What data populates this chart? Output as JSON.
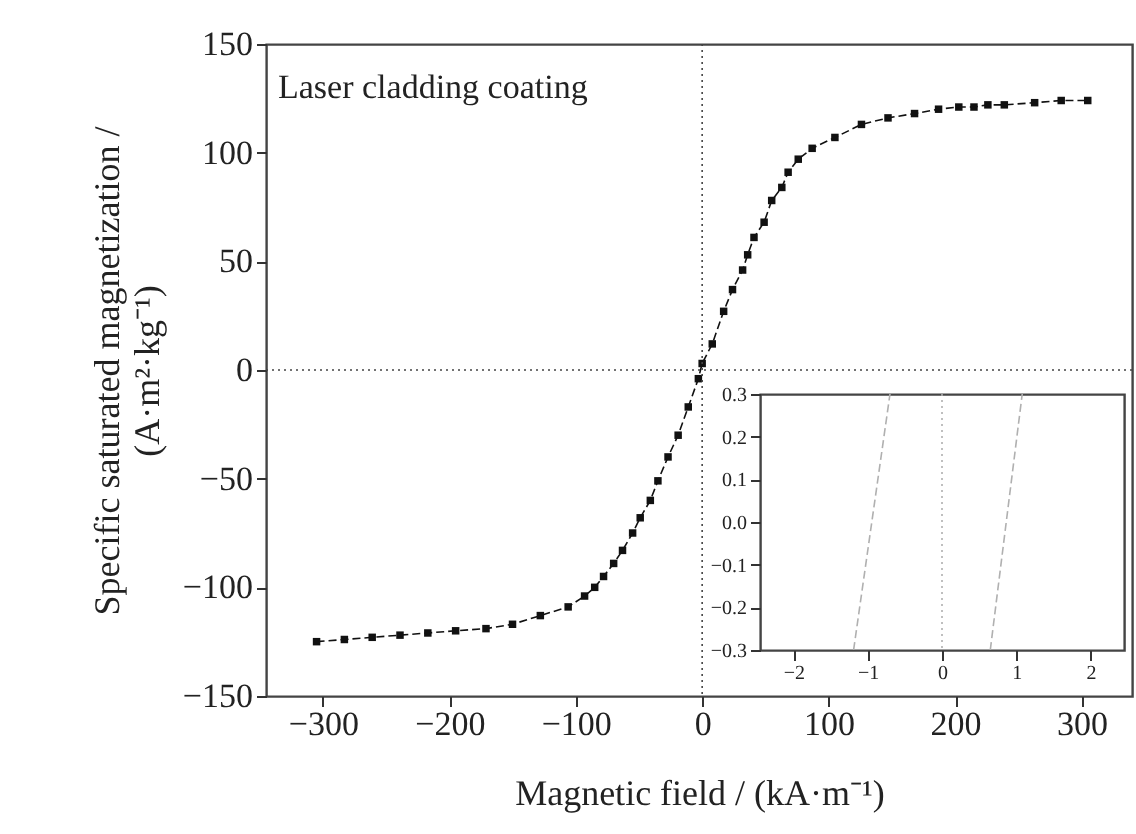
{
  "chart_data": [
    {
      "type": "line",
      "xlabel": "Magnetic field / (kA·m⁻¹)",
      "ylabel": "Specific saturated magnetization /\n(A·m²·kg⁻¹)",
      "annotations": [
        "Laser cladding coating"
      ],
      "xlim": [
        -345,
        340
      ],
      "ylim": [
        -150,
        150
      ],
      "xticks": [
        -300,
        -200,
        -100,
        0,
        100,
        200,
        300
      ],
      "yticks": [
        -150,
        -100,
        -50,
        0,
        50,
        100,
        150
      ],
      "marker": "square",
      "line_style": "dashed",
      "grid": false,
      "ref_lines": [
        {
          "axis": "x",
          "value": 0,
          "line_style": "dotted"
        },
        {
          "axis": "y",
          "value": 0,
          "line_style": "dotted"
        }
      ],
      "series": [
        {
          "color": "#111111",
          "x": [
            -305,
            -283,
            -261,
            -239,
            -217,
            -195,
            -171,
            -150,
            -128,
            -106,
            -93,
            -85,
            -78,
            -70,
            -63,
            -55,
            -49,
            -41,
            -35,
            -27,
            -19,
            -11,
            -3,
            0,
            8,
            17,
            24,
            32,
            36,
            41,
            49,
            55,
            63,
            68,
            76,
            87,
            105,
            126,
            147,
            168,
            187,
            203,
            215,
            226,
            239,
            263,
            284,
            305
          ],
          "values": [
            -125,
            -124,
            -123,
            -122,
            -121,
            -120,
            -119,
            -117,
            -113,
            -109,
            -104,
            -100,
            -95,
            -89,
            -83,
            -75,
            -68,
            -60,
            -51,
            -40,
            -30,
            -17,
            -4,
            3,
            12,
            27,
            37,
            46,
            53,
            61,
            68,
            78,
            84,
            91,
            97,
            102,
            107,
            113,
            116,
            118,
            120,
            121,
            121,
            122,
            122,
            123,
            124,
            124
          ]
        }
      ]
    },
    {
      "type": "line",
      "xlim": [
        -2.45,
        2.45
      ],
      "ylim": [
        -0.3,
        0.3
      ],
      "xticks": [
        -2,
        -1,
        0,
        1,
        2
      ],
      "yticks": [
        {
          "value": -0.3,
          "label": "−0.3"
        },
        {
          "value": -0.2,
          "label": "−0.2"
        },
        {
          "value": -0.1,
          "label": "−0.1"
        },
        {
          "value": 0,
          "label": "0.0"
        },
        0.1,
        0.2,
        0.3
      ],
      "marker": "none",
      "line_style": "dashed",
      "grid": false,
      "ref_lines": [
        {
          "axis": "x",
          "value": 0,
          "line_style": "dotted",
          "color": "#b0b0b0"
        }
      ],
      "series": [
        {
          "color": "#b0b0b0",
          "x": [
            -1.19,
            -0.7
          ],
          "values": [
            -0.3,
            0.3
          ]
        },
        {
          "color": "#b0b0b0",
          "x": [
            0.65,
            1.08
          ],
          "values": [
            -0.3,
            0.3
          ]
        }
      ]
    }
  ]
}
